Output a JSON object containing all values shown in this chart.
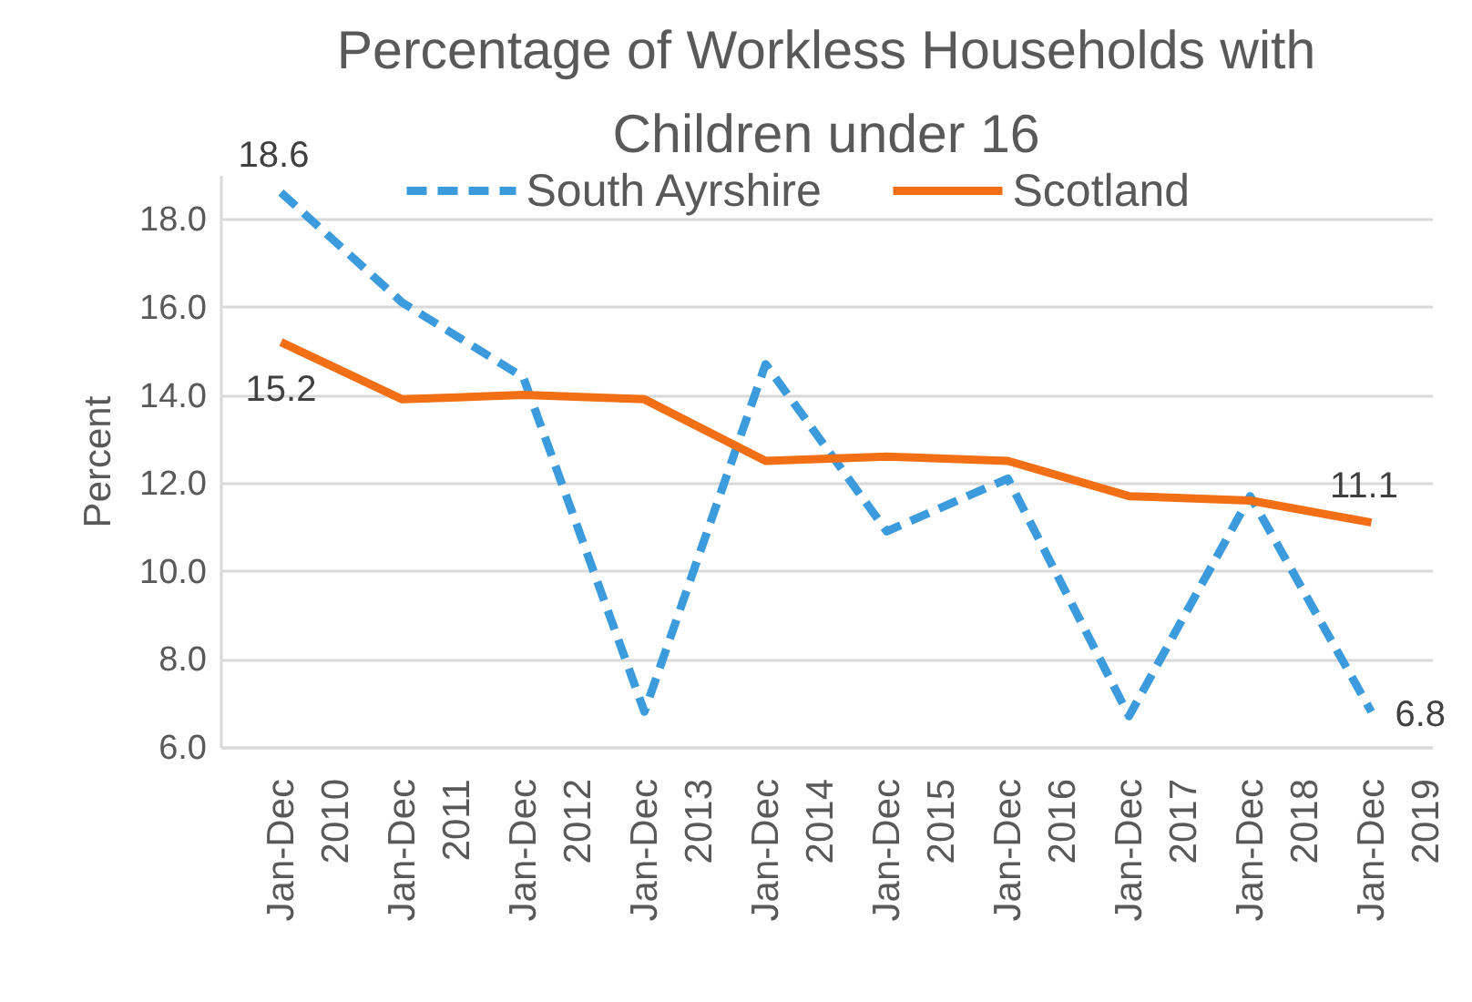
{
  "chart_data": {
    "type": "line",
    "title": "Percentage of Workless Households with Children under 16",
    "ylabel": "Percent",
    "categories": [
      "Jan-Dec 2010",
      "Jan-Dec 2011",
      "Jan-Dec 2012",
      "Jan-Dec 2013",
      "Jan-Dec 2014",
      "Jan-Dec 2015",
      "Jan-Dec 2016",
      "Jan-Dec 2017",
      "Jan-Dec 2018",
      "Jan-Dec 2019"
    ],
    "series": [
      {
        "name": "South Ayrshire",
        "color": "#3c9bdc",
        "line_style": "dashed",
        "values": [
          18.6,
          16.1,
          14.4,
          6.8,
          14.7,
          10.9,
          12.1,
          6.7,
          11.7,
          6.8
        ],
        "value_labels": [
          "18.6",
          null,
          null,
          null,
          null,
          null,
          null,
          null,
          null,
          "6.8"
        ]
      },
      {
        "name": "Scotland",
        "color": "#f26f16",
        "line_style": "solid",
        "values": [
          15.2,
          13.9,
          14.0,
          13.9,
          12.5,
          12.6,
          12.5,
          11.7,
          11.6,
          11.1
        ],
        "value_labels": [
          "15.2",
          null,
          null,
          null,
          null,
          null,
          null,
          null,
          null,
          "11.1"
        ]
      }
    ],
    "ylim": [
      6,
      19
    ],
    "yticks": [
      {
        "value": 6,
        "label": "6.0"
      },
      {
        "value": 8,
        "label": "8.0"
      },
      {
        "value": 10,
        "label": "10.0"
      },
      {
        "value": 12,
        "label": "12.0"
      },
      {
        "value": 14,
        "label": "14.0"
      },
      {
        "value": 16,
        "label": "16.0"
      },
      {
        "value": 18,
        "label": "18.0"
      }
    ],
    "grid": "y",
    "legend": "top"
  }
}
